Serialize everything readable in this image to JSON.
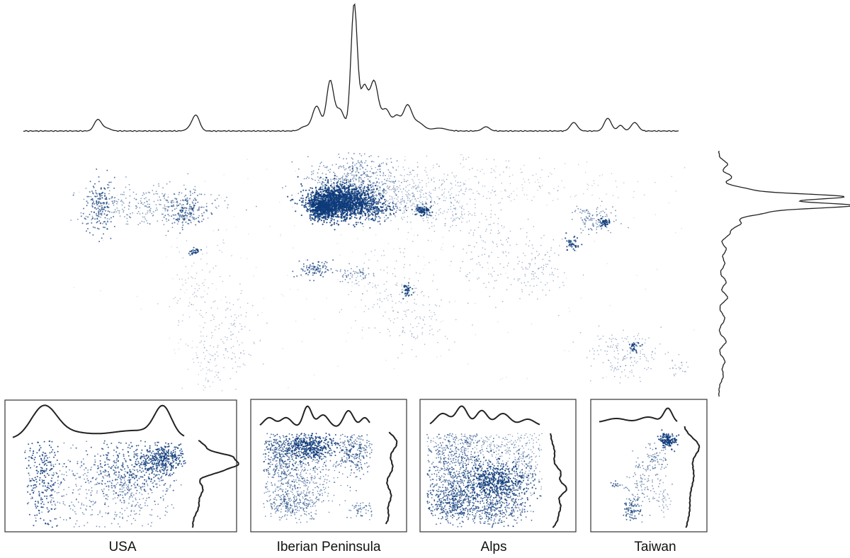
{
  "colors": {
    "point": "#0e3b7a",
    "line": "#222222",
    "frame": "#333333",
    "background": "#ffffff"
  },
  "chart_data": {
    "type": "scatter",
    "description_of_marks": "geotagged point density with marginal density curves",
    "world": {
      "marginal_x_peaks": [
        0.11,
        0.26,
        0.44,
        0.47,
        0.5,
        0.53,
        0.57,
        0.81,
        0.87,
        0.9
      ],
      "marginal_y_peaks": [
        0.09,
        0.22,
        0.25,
        0.3
      ]
    },
    "panels": [
      {
        "label": "USA"
      },
      {
        "label": "Iberian Peninsula"
      },
      {
        "label": "Alps"
      },
      {
        "label": "Taiwan"
      }
    ]
  }
}
